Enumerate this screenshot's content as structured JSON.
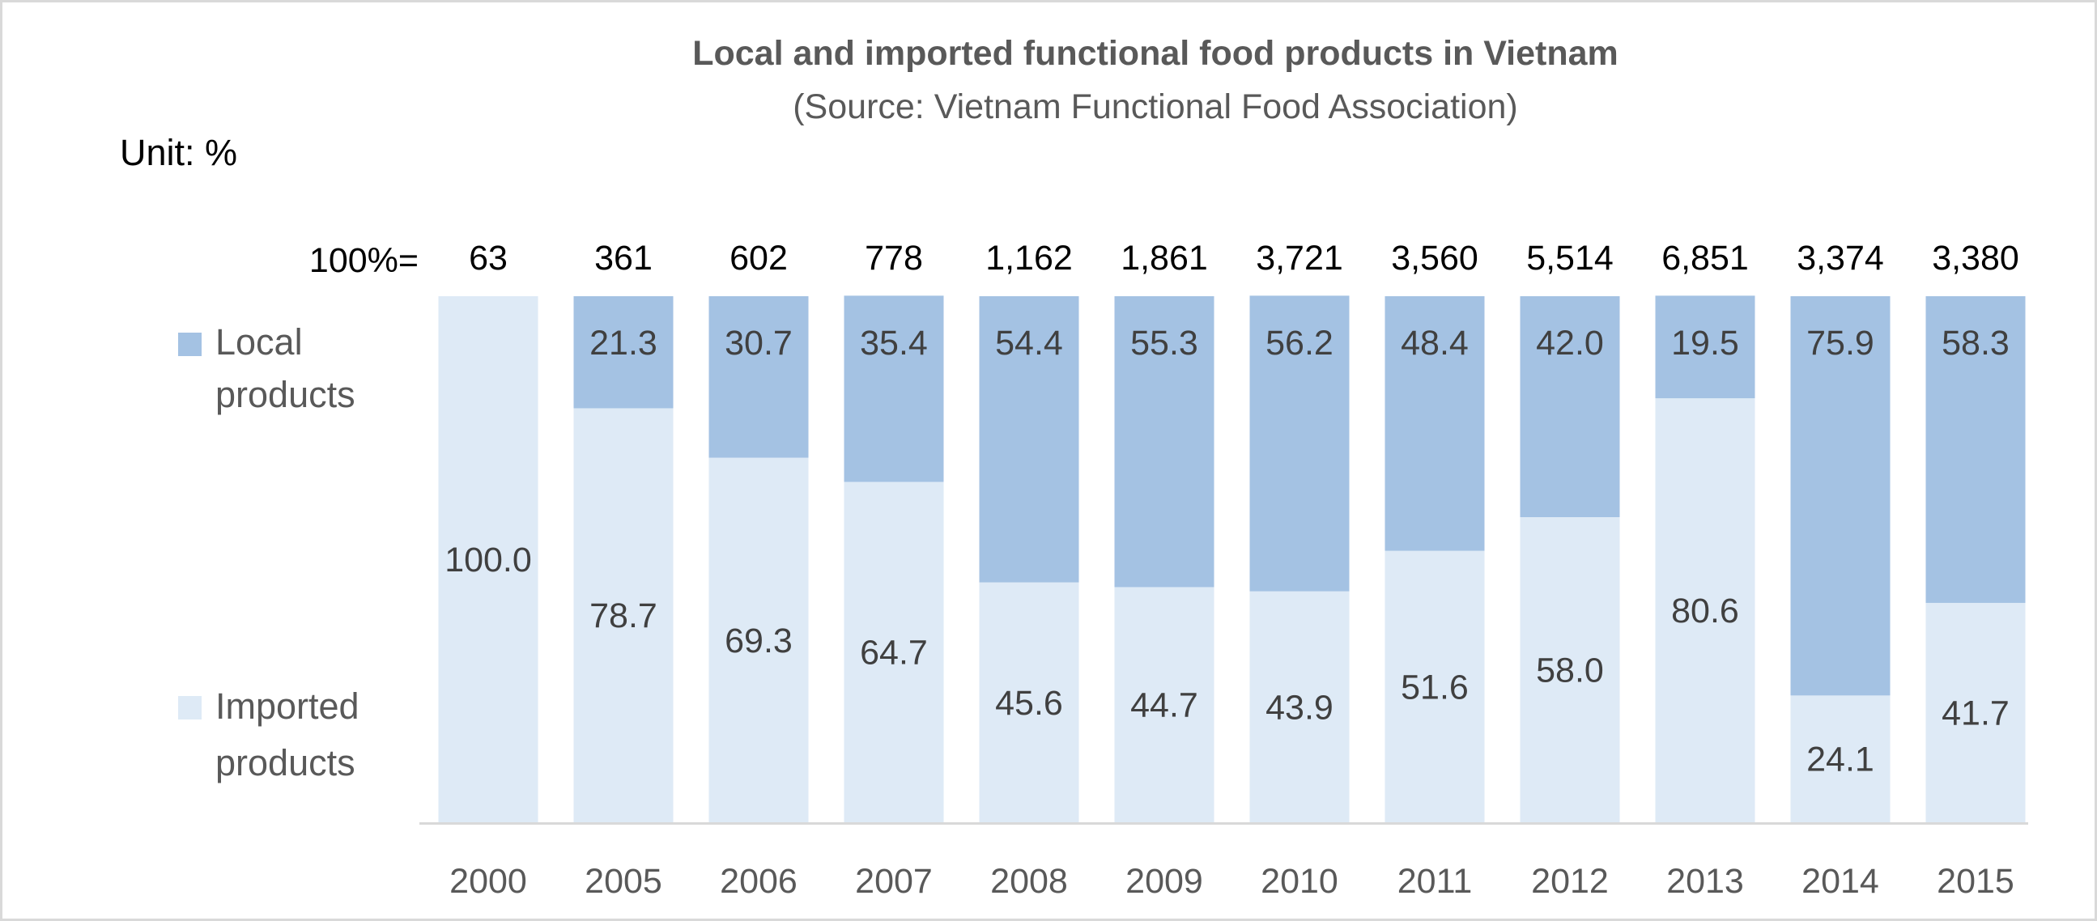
{
  "chart_data": {
    "type": "bar",
    "stacked": "percent",
    "title": "Local and imported functional food products in Vietnam",
    "subtitle": "(Source: Vietnam Functional Food Association)",
    "unit_label": "Unit: %",
    "total_prefix": "100%=",
    "categories": [
      "2000",
      "2005",
      "2006",
      "2007",
      "2008",
      "2009",
      "2010",
      "2011",
      "2012",
      "2013",
      "2014",
      "2015"
    ],
    "totals": [
      "63",
      "361",
      "602",
      "778",
      "1,162",
      "1,861",
      "3,721",
      "3,560",
      "5,514",
      "6,851",
      "3,374",
      "3,380"
    ],
    "series": [
      {
        "name": "Local products",
        "color": "#a4c2e3",
        "values": [
          0,
          21.3,
          30.7,
          35.4,
          54.4,
          55.3,
          56.2,
          48.4,
          42.0,
          19.5,
          75.9,
          58.3
        ],
        "labels": [
          "",
          "21.3",
          "30.7",
          "35.4",
          "54.4",
          "55.3",
          "56.2",
          "48.4",
          "42.0",
          "19.5",
          "75.9",
          "58.3"
        ]
      },
      {
        "name": "Imported products",
        "color": "#deeaf6",
        "values": [
          100.0,
          78.7,
          69.3,
          64.7,
          45.6,
          44.7,
          43.9,
          51.6,
          58.0,
          80.6,
          24.1,
          41.7
        ],
        "labels": [
          "100.0",
          "78.7",
          "69.3",
          "64.7",
          "45.6",
          "44.7",
          "43.9",
          "51.6",
          "58.0",
          "80.6",
          "24.1",
          "41.7"
        ]
      }
    ],
    "legend": {
      "position": "left",
      "items": [
        {
          "lines": [
            "Local",
            "products"
          ],
          "color": "#a4c2e3"
        },
        {
          "lines": [
            "Imported",
            "products"
          ],
          "color": "#deeaf6"
        }
      ]
    },
    "ylim": [
      0,
      100
    ],
    "grid": false,
    "xlabel": "",
    "ylabel": ""
  }
}
